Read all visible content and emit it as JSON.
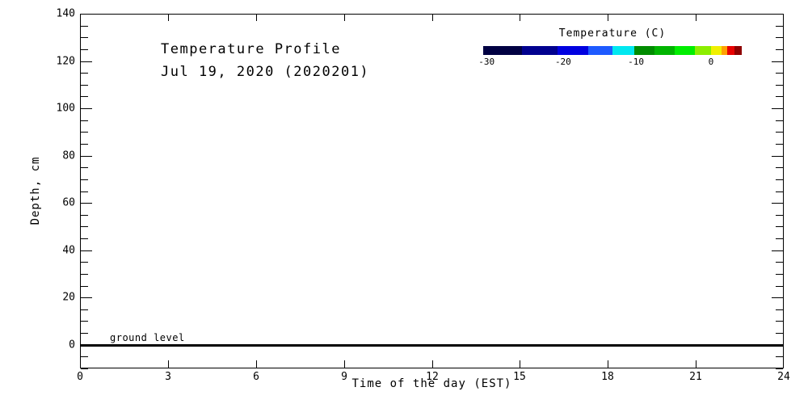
{
  "page": {
    "background": "#ffffff",
    "text_color": "#000000"
  },
  "chart_data": {
    "type": "heatmap",
    "title": "Temperature Profile",
    "subtitle": "Jul 19, 2020 (2020201)",
    "xlabel": "Time of the day (EST)",
    "ylabel": "Depth, cm",
    "xlim": [
      0,
      24
    ],
    "ylim": [
      -10,
      140
    ],
    "x_ticks": [
      0,
      3,
      6,
      9,
      12,
      15,
      18,
      21,
      24
    ],
    "y_ticks": [
      0,
      20,
      40,
      60,
      80,
      100,
      120,
      140
    ],
    "y_minor_step": 5,
    "grid": false,
    "series": [],
    "plot_area_empty": true,
    "ground_line": {
      "y": 0,
      "color": "#000000",
      "thickness_px": 3
    },
    "annotations": [
      {
        "text": "ground level",
        "x": 1.0,
        "y": 2,
        "placement": "above ground line, left side"
      }
    ],
    "colorbar": {
      "label": "Temperature (C)",
      "tick_labels": [
        "-30",
        "-20",
        "-10",
        "0"
      ],
      "tick_positions_pct": [
        1.3,
        30.9,
        59.1,
        88.1
      ],
      "segments": [
        {
          "color": "#000042",
          "end_pct": 15.0
        },
        {
          "color": "#00008F",
          "end_pct": 28.7
        },
        {
          "color": "#0000E0",
          "end_pct": 40.6
        },
        {
          "color": "#1E5AFF",
          "end_pct": 50.0
        },
        {
          "color": "#00E8F0",
          "end_pct": 58.4
        },
        {
          "color": "#008C00",
          "end_pct": 66.2
        },
        {
          "color": "#00B400",
          "end_pct": 74.1
        },
        {
          "color": "#00EE00",
          "end_pct": 81.9
        },
        {
          "color": "#8CEE00",
          "end_pct": 88.1
        },
        {
          "color": "#F0F000",
          "end_pct": 92.2
        },
        {
          "color": "#FFA000",
          "end_pct": 94.4
        },
        {
          "color": "#E80000",
          "end_pct": 97.2
        },
        {
          "color": "#8E0000",
          "end_pct": 100.0
        }
      ]
    }
  }
}
